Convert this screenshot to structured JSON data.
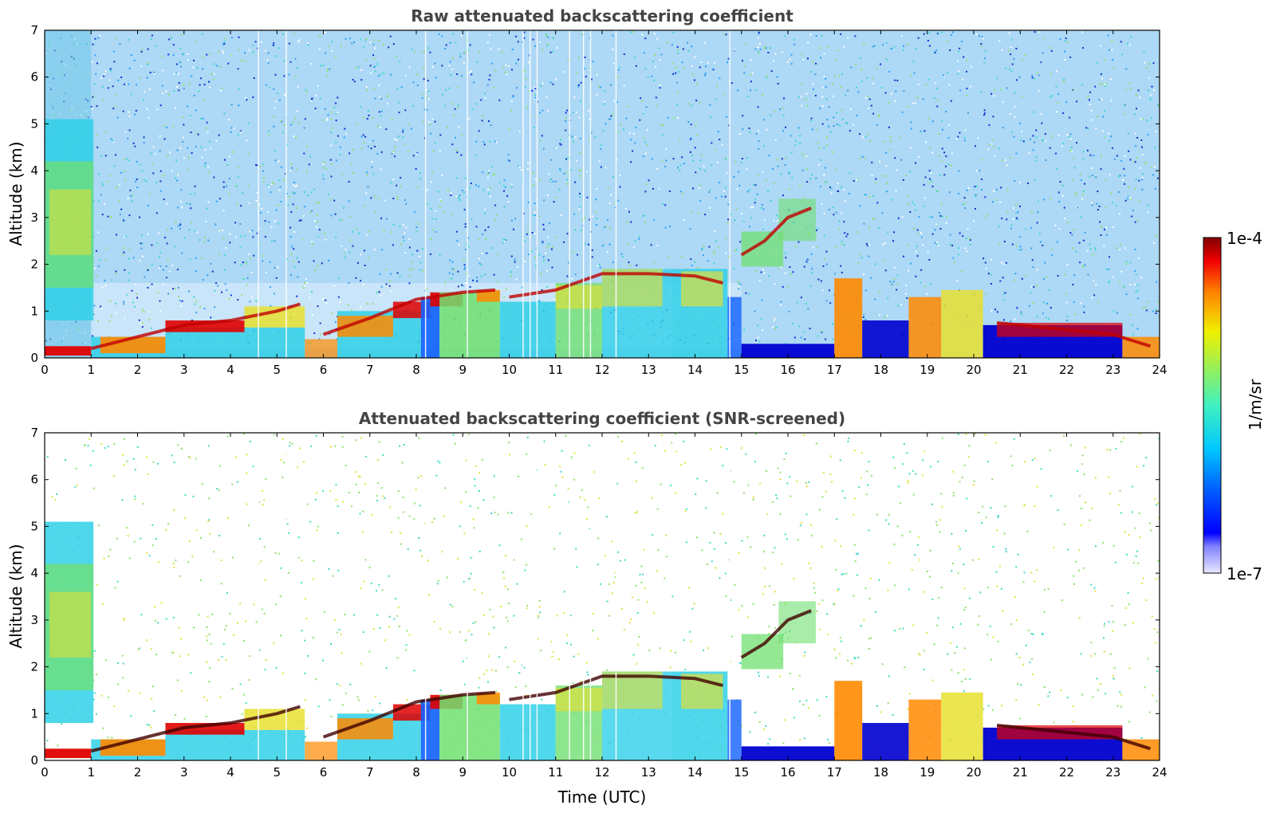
{
  "chart_data": [
    {
      "type": "heatmap",
      "title": "Raw attenuated backscattering coefficient",
      "xlabel": "",
      "ylabel": "Altitude (km)",
      "xlim": [
        0,
        24
      ],
      "ylim": [
        0,
        7
      ],
      "xticks": [
        "0",
        "1",
        "2",
        "3",
        "4",
        "5",
        "6",
        "7",
        "8",
        "9",
        "10",
        "11",
        "12",
        "13",
        "14",
        "15",
        "16",
        "17",
        "18",
        "19",
        "20",
        "21",
        "22",
        "23",
        "24"
      ],
      "yticks": [
        "0",
        "1",
        "2",
        "3",
        "4",
        "5",
        "6",
        "7"
      ],
      "features": [
        {
          "name": "boundary-layer-top-early",
          "x": [
            1,
            2,
            3,
            4,
            5,
            5.5
          ],
          "y": [
            0.2,
            0.45,
            0.7,
            0.8,
            1.0,
            1.15
          ]
        },
        {
          "name": "boundary-layer-top-morning",
          "x": [
            6,
            7,
            8,
            9,
            9.7
          ],
          "y": [
            0.5,
            0.85,
            1.25,
            1.4,
            1.45
          ]
        },
        {
          "name": "aerosol-layer-top-midday",
          "x": [
            10,
            11,
            12,
            13,
            14,
            14.6
          ],
          "y": [
            1.3,
            1.45,
            1.8,
            1.8,
            1.75,
            1.6
          ]
        },
        {
          "name": "elevated-plume",
          "x": [
            15,
            15.5,
            16,
            16.5
          ],
          "y": [
            2.2,
            2.5,
            3.0,
            3.2
          ]
        },
        {
          "name": "night-layer-top",
          "x": [
            20.5,
            21,
            22,
            23,
            23.8
          ],
          "y": [
            0.75,
            0.7,
            0.6,
            0.5,
            0.25
          ]
        }
      ]
    },
    {
      "type": "heatmap",
      "title": "Attenuated backscattering coefficient (SNR-screened)",
      "xlabel": "Time (UTC)",
      "ylabel": "Altitude (km)",
      "xlim": [
        0,
        24
      ],
      "ylim": [
        0,
        7
      ],
      "xticks": [
        "0",
        "1",
        "2",
        "3",
        "4",
        "5",
        "6",
        "7",
        "8",
        "9",
        "10",
        "11",
        "12",
        "13",
        "14",
        "15",
        "16",
        "17",
        "18",
        "19",
        "20",
        "21",
        "22",
        "23",
        "24"
      ],
      "yticks": [
        "0",
        "1",
        "2",
        "3",
        "4",
        "5",
        "6",
        "7"
      ],
      "screened": true
    }
  ],
  "colorbar": {
    "max_label": "1e-4",
    "min_label": "1e-7",
    "units_label": "1/m/sr",
    "scale": "log",
    "range": [
      1e-07,
      0.0001
    ]
  },
  "colors": {
    "deep_blue": "#0000d0",
    "blue": "#1060ff",
    "cyan": "#30d0e8",
    "green": "#70e070",
    "yellow": "#e8e030",
    "orange": "#ff8a00",
    "red": "#e00000",
    "dark_red": "#800000"
  }
}
